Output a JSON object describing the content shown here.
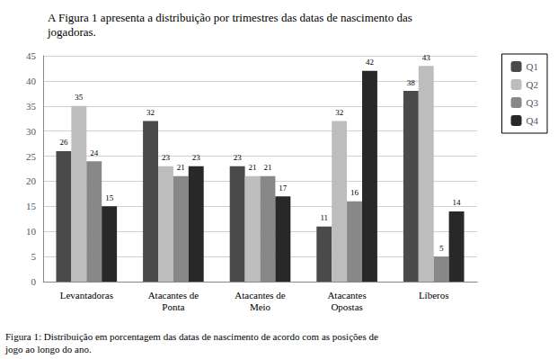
{
  "chart_data": {
    "type": "bar",
    "title": "A Figura 1 apresenta a distribuição por trimestres das datas de nascimento das\njogadoras.",
    "annotations": [
      "Figura 1: Distribuição em porcentagem das datas de nascimento de acordo com as posições de\njogo ao longo do ano."
    ],
    "categories": [
      "Levantadoras",
      "Atacantes de\nPonta",
      "Atacantes de\nMeio",
      "Atacantes\nOpostas",
      "Líberos"
    ],
    "series": [
      {
        "name": "Q1",
        "color": "#4a4a4a",
        "values": [
          26,
          32,
          23,
          11,
          38
        ]
      },
      {
        "name": "Q2",
        "color": "#bdbdbd",
        "values": [
          35,
          23,
          21,
          32,
          43
        ]
      },
      {
        "name": "Q3",
        "color": "#888888",
        "values": [
          24,
          21,
          21,
          16,
          5
        ]
      },
      {
        "name": "Q4",
        "color": "#282828",
        "values": [
          15,
          23,
          17,
          42,
          14
        ]
      }
    ],
    "ylim": [
      0,
      45
    ],
    "yticks": [
      0,
      5,
      10,
      15,
      20,
      25,
      30,
      35,
      40,
      45
    ],
    "grid": true,
    "legend": "right",
    "data_labels": true
  }
}
